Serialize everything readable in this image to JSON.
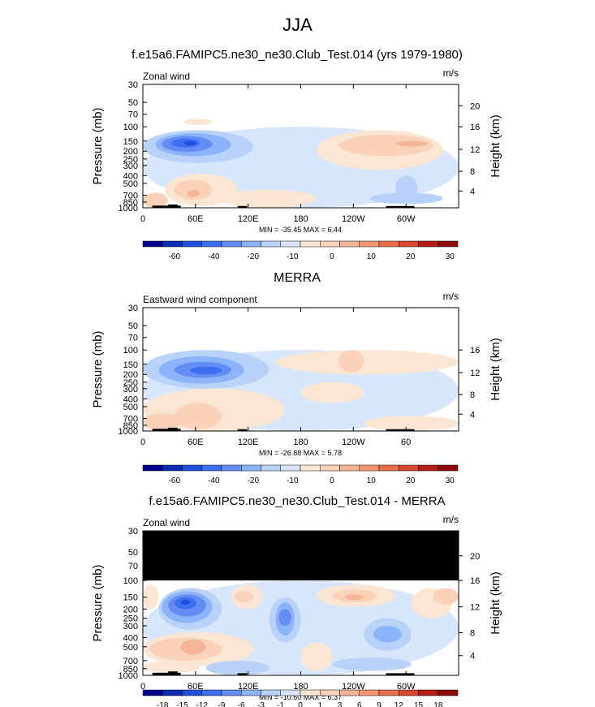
{
  "figure_title": "JJA",
  "chart_data": [
    {
      "type": "heatmap",
      "title": "f.e15a6.FAMIPC5.ne30_ne30.Club_Test.014 (yrs 1979-1980)",
      "field_label": "Zonal wind",
      "units": "m/s",
      "ylabel": "Pressure (mb)",
      "y2label": "Height (km)",
      "pressure_ticks": [
        "30",
        "50",
        "70",
        "100",
        "150",
        "200",
        "250",
        "300",
        "400",
        "500",
        "700",
        "850",
        "1000"
      ],
      "height_ticks": [
        "20",
        "16",
        "12",
        "8",
        "4"
      ],
      "x_ticks": [
        "0",
        "60E",
        "120E",
        "180",
        "120W",
        "60W"
      ],
      "stats": "MIN = -35.45  MAX =  6.44",
      "colorbar": {
        "labels": [
          "-60",
          "-40",
          "-20",
          "-10",
          "0",
          "10",
          "20",
          "30"
        ],
        "colors": [
          "#00008c",
          "#0a2db4",
          "#1e50dc",
          "#3c6ef0",
          "#648cf5",
          "#8cb4fa",
          "#b9d2fa",
          "#d7e6fa",
          "#fae6d2",
          "#fad2b9",
          "#f5b496",
          "#f59673",
          "#eb6e4b",
          "#d7462d",
          "#b41e14",
          "#8c0a0a"
        ]
      }
    },
    {
      "type": "heatmap",
      "title": "MERRA",
      "field_label": "Eastward wind component",
      "units": "m/s",
      "ylabel": "Pressure (mb)",
      "y2label": "Height (km)",
      "pressure_ticks": [
        "30",
        "50",
        "70",
        "100",
        "150",
        "200",
        "250",
        "300",
        "400",
        "500",
        "700",
        "850",
        "1000"
      ],
      "height_ticks": [
        "16",
        "12",
        "8",
        "4"
      ],
      "x_ticks": [
        "0",
        "60E",
        "120E",
        "180",
        "120W",
        "60"
      ],
      "stats": "MIN = -26.88  MAX =  5.78",
      "colorbar": {
        "labels": [
          "-60",
          "-40",
          "-20",
          "-10",
          "0",
          "10",
          "20",
          "30"
        ],
        "colors": [
          "#00008c",
          "#0a2db4",
          "#1e50dc",
          "#3c6ef0",
          "#648cf5",
          "#8cb4fa",
          "#b9d2fa",
          "#d7e6fa",
          "#fae6d2",
          "#fad2b9",
          "#f5b496",
          "#f59673",
          "#eb6e4b",
          "#d7462d",
          "#b41e14",
          "#8c0a0a"
        ]
      }
    },
    {
      "type": "heatmap",
      "title": "f.e15a6.FAMIPC5.ne30_ne30.Club_Test.014 - MERRA",
      "field_label": "Zonal wind",
      "units": "m/s",
      "ylabel": "Pressure (mb)",
      "y2label": "Height (km)",
      "pressure_ticks": [
        "30",
        "50",
        "70",
        "100",
        "150",
        "200",
        "250",
        "300",
        "400",
        "500",
        "700",
        "850",
        "1000"
      ],
      "height_ticks": [
        "20",
        "16",
        "12",
        "8",
        "4"
      ],
      "x_ticks": [
        "0",
        "60E",
        "120E",
        "180",
        "120W",
        "60W"
      ],
      "stats": "MIN = -10.60  MAX =  6.37",
      "colorbar": {
        "labels": [
          "-18",
          "-15",
          "-12",
          "-9",
          "-6",
          "-3",
          "-1",
          "0",
          "1",
          "3",
          "6",
          "9",
          "12",
          "15",
          "18"
        ],
        "colors": [
          "#00008c",
          "#0a2db4",
          "#1e50dc",
          "#3c6ef0",
          "#648cf5",
          "#8cb4fa",
          "#b9d2fa",
          "#d7e6fa",
          "#fae6d2",
          "#fad2b9",
          "#f5b496",
          "#f59673",
          "#eb6e4b",
          "#d7462d",
          "#b41e14",
          "#8c0a0a"
        ]
      }
    }
  ]
}
